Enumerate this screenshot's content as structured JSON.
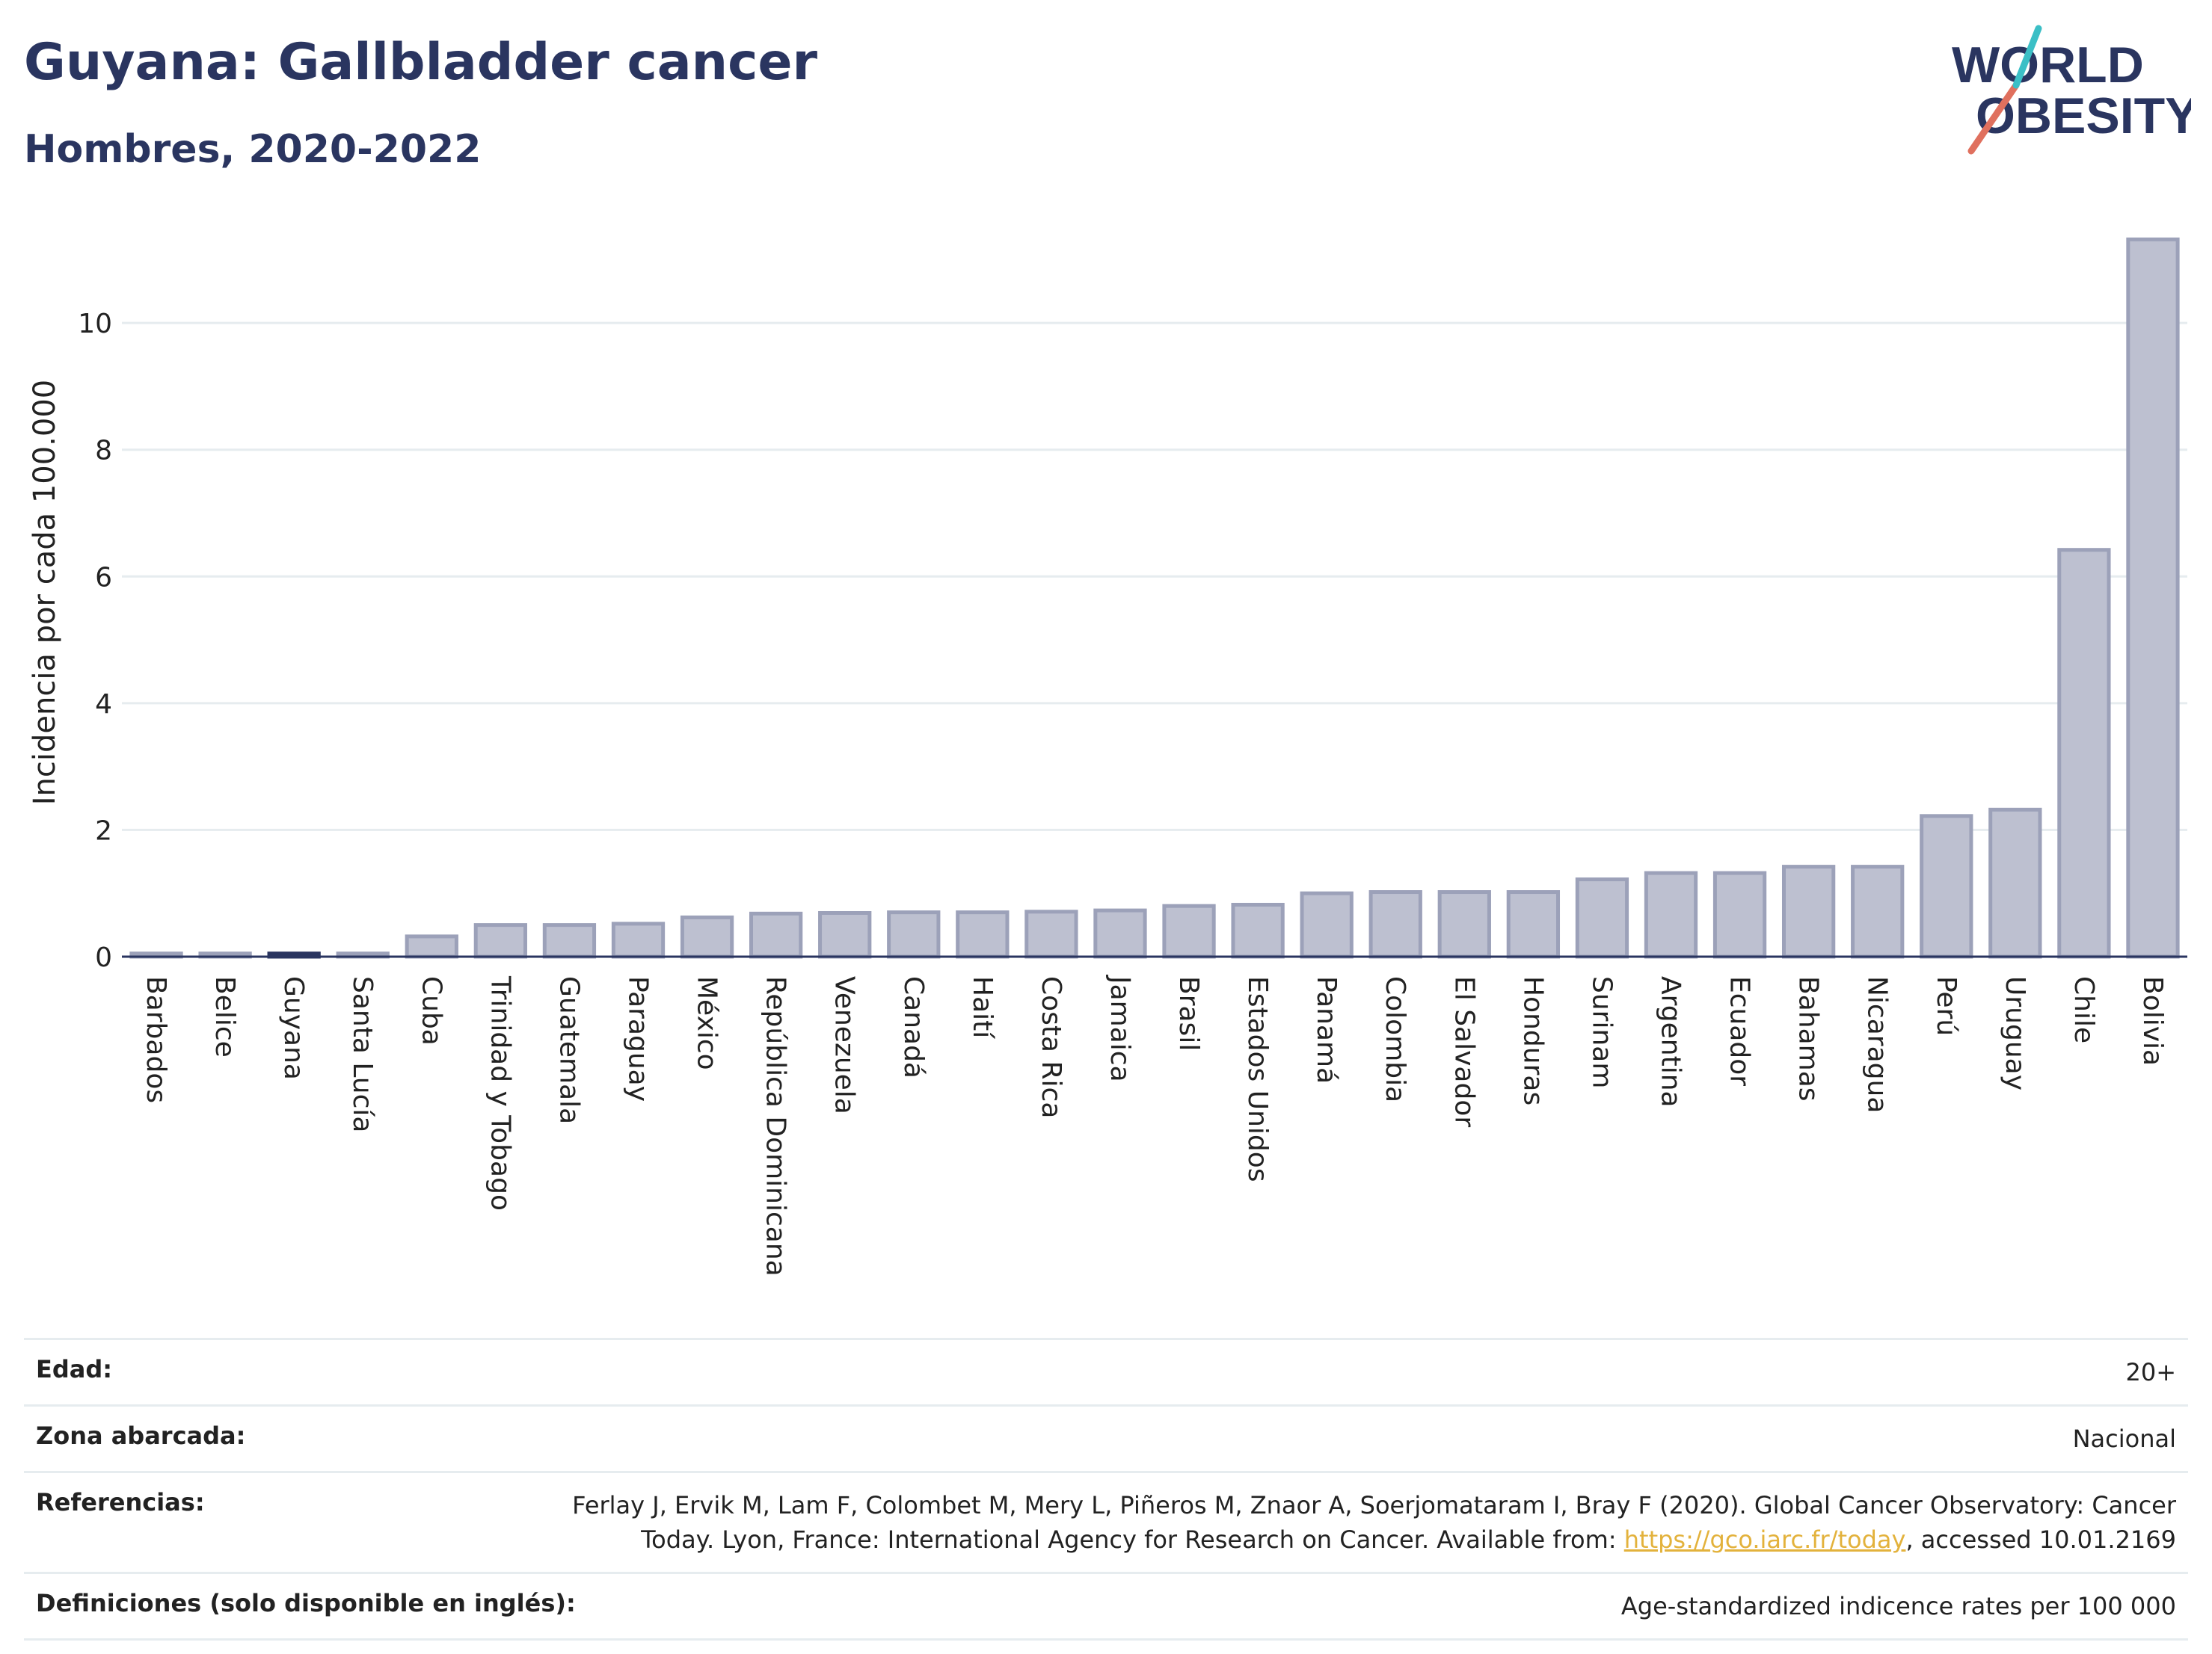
{
  "title": "Guyana: Gallbladder cancer",
  "subtitle": "Hombres, 2020-2022",
  "logo": {
    "line1": "WORLD",
    "line2": "OBESITY",
    "colors": [
      "#2a3560",
      "#e0705e",
      "#3bbfc6"
    ]
  },
  "colors": {
    "bar": "#bdc0d0",
    "bar_border": "#9ca1b9",
    "highlight": "#2a3560",
    "grid": "#e6ecef",
    "axis": "#2a3560"
  },
  "chart_data": {
    "type": "bar",
    "ylabel": "Incidencia por cada 100.000",
    "ylim": [
      0,
      11.5
    ],
    "yticks": [
      0,
      2,
      4,
      6,
      8,
      10
    ],
    "grid": true,
    "highlight": "Guyana",
    "categories": [
      "Barbados",
      "Belice",
      "Guyana",
      "Santa Lucía",
      "Cuba",
      "Trinidad y Tobago",
      "Guatemala",
      "Paraguay",
      "México",
      "República Dominicana",
      "Venezuela",
      "Canadá",
      "Haití",
      "Costa Rica",
      "Jamaica",
      "Brasil",
      "Estados Unidos",
      "Panamá",
      "Colombia",
      "El Salvador",
      "Honduras",
      "Surinam",
      "Argentina",
      "Ecuador",
      "Bahamas",
      "Nicaragua",
      "Perú",
      "Uruguay",
      "Chile",
      "Bolivia"
    ],
    "values": [
      0.05,
      0.05,
      0.05,
      0.05,
      0.32,
      0.5,
      0.5,
      0.52,
      0.62,
      0.68,
      0.69,
      0.7,
      0.7,
      0.71,
      0.73,
      0.8,
      0.82,
      1.0,
      1.02,
      1.02,
      1.02,
      1.22,
      1.32,
      1.32,
      1.42,
      1.42,
      2.22,
      2.32,
      6.42,
      11.32
    ]
  },
  "info": [
    {
      "label": "Edad:",
      "value": "20+"
    },
    {
      "label": "Zona abarcada:",
      "value": "Nacional"
    },
    {
      "label": "Referencias:",
      "value_pre": "Ferlay J, Ervik M, Lam F, Colombet M, Mery L, Piñeros M, Znaor A, Soerjomataram I, Bray F (2020). Global Cancer Observatory: Cancer Today. Lyon, France: International Agency for Research on Cancer. Available from: ",
      "link": "https://gco.iarc.fr/today",
      "value_post": ", accessed 10.01.2169"
    },
    {
      "label": "Definiciones (solo disponible en inglés):",
      "value": "Age-standardized indicence rates per 100 000"
    }
  ]
}
